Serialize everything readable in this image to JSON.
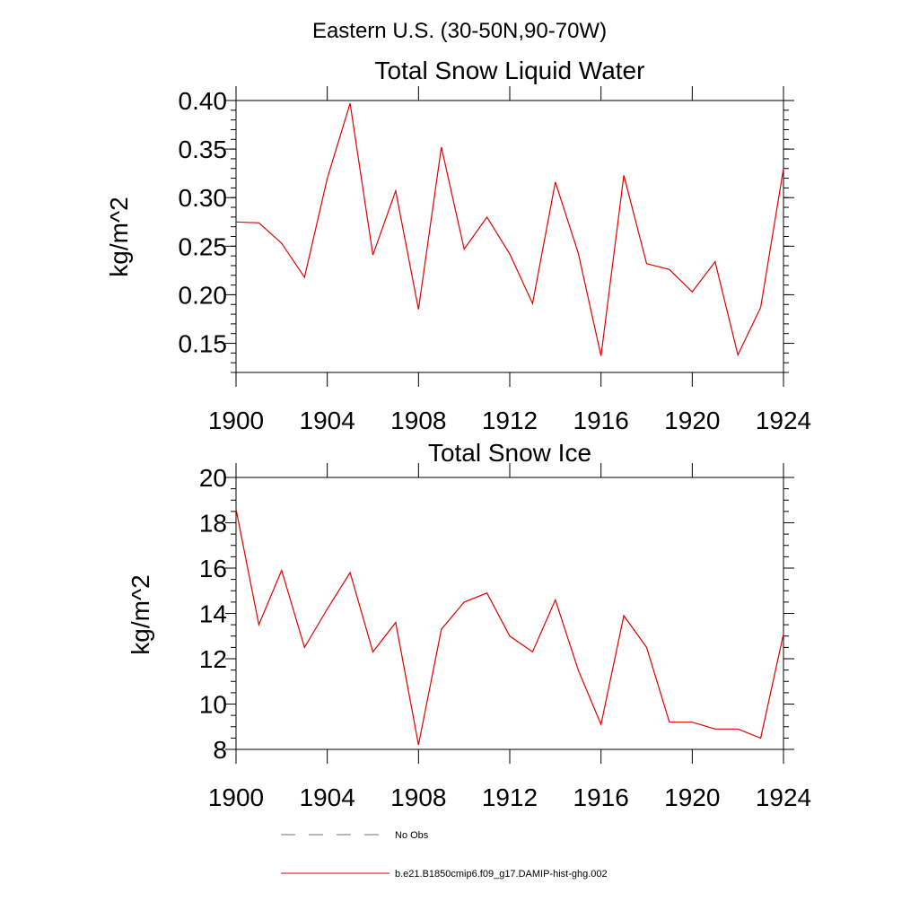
{
  "suptitle": "Eastern U.S. (30-50N,90-70W)",
  "colors": {
    "series": "#e00000",
    "no_obs": "#6b6b9a",
    "axis": "#000000"
  },
  "legend": {
    "position": "bottom-left",
    "items": [
      {
        "label": "No Obs",
        "style": "dashed",
        "color": "#6b6b9a"
      },
      {
        "label": "b.e21.B1850cmip6.f09_g17.DAMIP-hist-ghg.002",
        "style": "solid",
        "color": "#e00000"
      }
    ]
  },
  "chart_data": [
    {
      "type": "line",
      "title": "Total Snow Liquid Water",
      "xlabel": "",
      "ylabel": "kg/m^2",
      "xlim": [
        1900,
        1924
      ],
      "ylim": [
        0.12,
        0.4
      ],
      "xticks": [
        "1900",
        "1904",
        "1908",
        "1912",
        "1916",
        "1920",
        "1924"
      ],
      "yticks": [
        "0.15",
        "0.20",
        "0.25",
        "0.30",
        "0.35",
        "0.40"
      ],
      "grid": false,
      "series": [
        {
          "name": "b.e21.B1850cmip6.f09_g17.DAMIP-hist-ghg.002",
          "x": [
            1900,
            1901,
            1902,
            1903,
            1904,
            1905,
            1906,
            1907,
            1908,
            1909,
            1910,
            1911,
            1912,
            1913,
            1914,
            1915,
            1916,
            1917,
            1918,
            1919,
            1920,
            1921,
            1922,
            1923,
            1924
          ],
          "y": [
            0.275,
            0.274,
            0.253,
            0.218,
            0.32,
            0.397,
            0.241,
            0.307,
            0.185,
            0.352,
            0.247,
            0.28,
            0.242,
            0.191,
            0.316,
            0.243,
            0.137,
            0.323,
            0.232,
            0.226,
            0.203,
            0.234,
            0.138,
            0.187,
            0.33
          ]
        }
      ]
    },
    {
      "type": "line",
      "title": "Total Snow Ice",
      "xlabel": "",
      "ylabel": "kg/m^2",
      "xlim": [
        1900,
        1924
      ],
      "ylim": [
        8,
        20
      ],
      "xticks": [
        "1900",
        "1904",
        "1908",
        "1912",
        "1916",
        "1920",
        "1924"
      ],
      "yticks": [
        "8",
        "10",
        "12",
        "14",
        "16",
        "18",
        "20"
      ],
      "grid": false,
      "series": [
        {
          "name": "b.e21.B1850cmip6.f09_g17.DAMIP-hist-ghg.002",
          "x": [
            1900,
            1901,
            1902,
            1903,
            1904,
            1905,
            1906,
            1907,
            1908,
            1909,
            1910,
            1911,
            1912,
            1913,
            1914,
            1915,
            1916,
            1917,
            1918,
            1919,
            1920,
            1921,
            1922,
            1923,
            1924
          ],
          "y": [
            18.6,
            13.5,
            15.9,
            12.5,
            14.2,
            15.8,
            12.3,
            13.6,
            8.2,
            13.3,
            14.5,
            14.9,
            13.0,
            12.3,
            14.6,
            11.5,
            9.1,
            13.9,
            12.5,
            9.2,
            9.2,
            8.9,
            8.9,
            8.5,
            13.1
          ]
        }
      ]
    }
  ]
}
